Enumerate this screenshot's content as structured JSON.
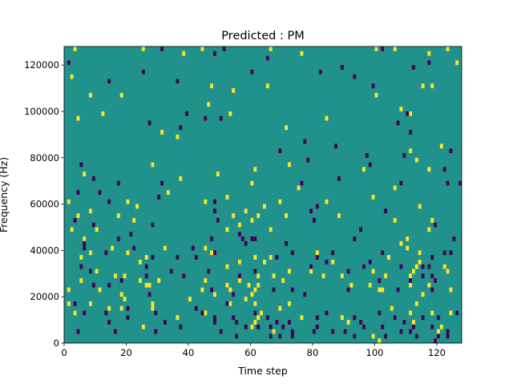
{
  "chart_data": {
    "type": "heatmap",
    "title": "Predicted : PM",
    "xlabel": "Time step",
    "ylabel": "Frequency (Hz)",
    "xlim": [
      0,
      128
    ],
    "ylim": [
      0,
      128000
    ],
    "x_ticks": [
      0,
      20,
      40,
      60,
      80,
      100,
      120
    ],
    "y_ticks": [
      0,
      20000,
      40000,
      60000,
      80000,
      100000,
      120000
    ],
    "n_time_steps": 128,
    "n_freq_bins": 64,
    "freq_bin_width_hz": 2000,
    "grid": false,
    "legend": "none",
    "colors": {
      "background": "#21918c",
      "high": "#fde725",
      "low": "#440154"
    },
    "cells": {
      "high": [
        [
          3,
          63
        ],
        [
          2,
          57
        ],
        [
          25,
          63
        ],
        [
          38,
          62
        ],
        [
          44,
          63
        ],
        [
          66,
          63
        ],
        [
          76,
          62
        ],
        [
          100,
          63
        ],
        [
          106,
          63
        ],
        [
          117,
          62
        ],
        [
          123,
          63
        ],
        [
          8,
          53
        ],
        [
          18,
          53
        ],
        [
          47,
          55
        ],
        [
          54,
          54
        ],
        [
          65,
          55
        ],
        [
          100,
          53
        ],
        [
          115,
          55
        ],
        [
          118,
          55
        ],
        [
          126,
          60
        ],
        [
          4,
          48
        ],
        [
          12,
          49
        ],
        [
          31,
          45
        ],
        [
          36,
          44
        ],
        [
          53,
          49
        ],
        [
          46,
          51
        ],
        [
          71,
          46
        ],
        [
          84,
          48
        ],
        [
          111,
          49
        ],
        [
          108,
          50
        ],
        [
          6,
          36
        ],
        [
          28,
          38
        ],
        [
          60,
          34
        ],
        [
          61,
          37
        ],
        [
          72,
          38
        ],
        [
          96,
          37
        ],
        [
          111,
          41
        ],
        [
          121,
          42
        ],
        [
          113,
          39
        ],
        [
          117,
          37
        ],
        [
          1,
          30
        ],
        [
          4,
          27
        ],
        [
          8,
          28
        ],
        [
          20,
          30
        ],
        [
          23,
          29
        ],
        [
          37,
          35
        ],
        [
          45,
          30
        ],
        [
          49,
          36
        ],
        [
          52,
          31
        ],
        [
          64,
          29
        ],
        [
          69,
          30
        ],
        [
          75,
          33
        ],
        [
          84,
          30
        ],
        [
          99,
          31
        ],
        [
          114,
          29
        ],
        [
          106,
          33
        ],
        [
          2,
          24
        ],
        [
          6,
          22
        ],
        [
          10,
          24
        ],
        [
          17,
          27
        ],
        [
          22,
          26
        ],
        [
          33,
          32
        ],
        [
          52,
          24
        ],
        [
          54,
          27
        ],
        [
          56,
          25
        ],
        [
          58,
          28
        ],
        [
          60,
          26
        ],
        [
          62,
          27
        ],
        [
          66,
          24
        ],
        [
          71,
          27
        ],
        [
          88,
          27
        ],
        [
          106,
          26
        ],
        [
          110,
          22
        ],
        [
          117,
          24
        ],
        [
          118,
          26
        ],
        [
          5,
          18
        ],
        [
          8,
          19
        ],
        [
          15,
          20
        ],
        [
          20,
          19
        ],
        [
          24,
          17
        ],
        [
          26,
          18
        ],
        [
          32,
          20
        ],
        [
          45,
          20
        ],
        [
          47,
          19
        ],
        [
          52,
          16
        ],
        [
          56,
          17
        ],
        [
          61,
          18
        ],
        [
          64,
          17
        ],
        [
          66,
          18
        ],
        [
          72,
          15
        ],
        [
          81,
          19
        ],
        [
          86,
          17
        ],
        [
          104,
          18
        ],
        [
          108,
          21
        ],
        [
          110,
          20
        ],
        [
          114,
          19
        ],
        [
          122,
          16
        ],
        [
          5,
          13
        ],
        [
          10,
          15
        ],
        [
          16,
          14
        ],
        [
          19,
          14
        ],
        [
          24,
          13
        ],
        [
          27,
          12
        ],
        [
          30,
          13
        ],
        [
          45,
          13
        ],
        [
          52,
          12
        ],
        [
          56,
          13
        ],
        [
          62,
          14
        ],
        [
          67,
          14
        ],
        [
          70,
          13
        ],
        [
          79,
          15
        ],
        [
          89,
          14
        ],
        [
          92,
          12
        ],
        [
          99,
          15
        ],
        [
          101,
          11
        ],
        [
          103,
          14
        ],
        [
          111,
          14
        ],
        [
          112,
          15
        ],
        [
          113,
          16
        ],
        [
          114,
          17
        ],
        [
          117,
          12
        ],
        [
          123,
          15
        ],
        [
          1,
          11
        ],
        [
          11,
          11
        ],
        [
          18,
          10
        ],
        [
          26,
          12
        ],
        [
          44,
          11
        ],
        [
          48,
          10
        ],
        [
          53,
          11
        ],
        [
          59,
          12
        ],
        [
          60,
          10
        ],
        [
          61,
          11
        ],
        [
          62,
          12
        ],
        [
          83,
          14
        ],
        [
          98,
          12
        ],
        [
          102,
          11
        ],
        [
          111,
          12
        ],
        [
          115,
          10
        ],
        [
          124,
          11
        ],
        [
          3,
          6
        ],
        [
          14,
          7
        ],
        [
          18,
          7
        ],
        [
          28,
          7
        ],
        [
          36,
          5
        ],
        [
          45,
          6
        ],
        [
          60,
          3
        ],
        [
          61,
          4
        ],
        [
          62,
          5
        ],
        [
          63,
          6
        ],
        [
          69,
          7
        ],
        [
          89,
          5
        ],
        [
          105,
          7
        ],
        [
          111,
          6
        ],
        [
          113,
          8
        ],
        [
          118,
          6
        ],
        [
          121,
          3
        ],
        [
          1,
          8
        ],
        [
          8,
          8
        ],
        [
          19,
          9
        ],
        [
          25,
          3
        ],
        [
          28,
          8
        ],
        [
          40,
          9
        ],
        [
          53,
          8
        ],
        [
          58,
          9
        ],
        [
          61,
          8
        ],
        [
          67,
          2
        ],
        [
          72,
          8
        ],
        [
          76,
          5
        ],
        [
          91,
          4
        ],
        [
          99,
          1
        ],
        [
          101,
          0
        ],
        [
          112,
          4
        ],
        [
          120,
          2
        ],
        [
          124,
          6
        ]
      ],
      "low": [
        [
          31,
          63
        ],
        [
          48,
          62
        ],
        [
          51,
          63
        ],
        [
          102,
          63
        ],
        [
          117,
          60
        ],
        [
          1,
          60
        ],
        [
          25,
          58
        ],
        [
          60,
          58
        ],
        [
          65,
          61
        ],
        [
          82,
          58
        ],
        [
          89,
          59
        ],
        [
          112,
          59
        ],
        [
          99,
          55
        ],
        [
          14,
          56
        ],
        [
          36,
          56
        ],
        [
          93,
          57
        ],
        [
          39,
          49
        ],
        [
          45,
          48
        ],
        [
          27,
          47
        ],
        [
          50,
          48
        ],
        [
          37,
          46
        ],
        [
          107,
          47
        ],
        [
          111,
          45
        ],
        [
          110,
          49
        ],
        [
          77,
          43
        ],
        [
          78,
          39
        ],
        [
          5,
          38
        ],
        [
          17,
          34
        ],
        [
          31,
          34
        ],
        [
          9,
          35
        ],
        [
          69,
          41
        ],
        [
          87,
          42
        ],
        [
          98,
          38
        ],
        [
          123,
          34
        ],
        [
          124,
          41
        ],
        [
          109,
          40
        ],
        [
          4,
          32
        ],
        [
          14,
          30
        ],
        [
          11,
          32
        ],
        [
          30,
          31
        ],
        [
          48,
          30
        ],
        [
          79,
          28
        ],
        [
          76,
          34
        ],
        [
          88,
          35
        ],
        [
          97,
          40
        ],
        [
          122,
          37
        ],
        [
          127,
          34
        ],
        [
          103,
          28
        ],
        [
          108,
          34
        ],
        [
          3,
          26
        ],
        [
          6,
          21
        ],
        [
          9,
          25
        ],
        [
          17,
          22
        ],
        [
          21,
          23
        ],
        [
          28,
          25
        ],
        [
          41,
          20
        ],
        [
          47,
          22
        ],
        [
          48,
          28
        ],
        [
          49,
          26
        ],
        [
          56,
          23
        ],
        [
          58,
          21
        ],
        [
          60,
          22
        ],
        [
          61,
          22
        ],
        [
          73,
          19
        ],
        [
          80,
          26
        ],
        [
          81,
          29
        ],
        [
          93,
          22
        ],
        [
          95,
          24
        ],
        [
          119,
          25
        ],
        [
          125,
          22
        ],
        [
          6,
          20
        ],
        [
          13,
          19
        ],
        [
          22,
          20
        ],
        [
          28,
          18
        ],
        [
          36,
          18
        ],
        [
          42,
          18
        ],
        [
          48,
          19
        ],
        [
          57,
          22
        ],
        [
          68,
          18
        ],
        [
          71,
          21
        ],
        [
          81,
          18
        ],
        [
          84,
          17
        ],
        [
          86,
          19
        ],
        [
          96,
          16
        ],
        [
          102,
          19
        ],
        [
          108,
          16
        ],
        [
          115,
          16
        ],
        [
          118,
          18
        ],
        [
          122,
          19
        ],
        [
          124,
          19
        ],
        [
          5,
          16
        ],
        [
          8,
          15
        ],
        [
          26,
          16
        ],
        [
          38,
          14
        ],
        [
          46,
          15
        ],
        [
          56,
          14
        ],
        [
          61,
          15
        ],
        [
          79,
          16
        ],
        [
          91,
          15
        ],
        [
          98,
          17
        ],
        [
          115,
          14
        ],
        [
          117,
          16
        ],
        [
          118,
          14
        ],
        [
          9,
          12
        ],
        [
          14,
          12
        ],
        [
          18,
          13
        ],
        [
          26,
          14
        ],
        [
          34,
          15
        ],
        [
          47,
          11
        ],
        [
          54,
          10
        ],
        [
          67,
          11
        ],
        [
          73,
          11
        ],
        [
          77,
          10
        ],
        [
          91,
          11
        ],
        [
          101,
          13
        ],
        [
          107,
          11
        ],
        [
          111,
          13
        ],
        [
          118,
          11
        ],
        [
          119,
          13
        ],
        [
          3,
          8
        ],
        [
          6,
          6
        ],
        [
          14,
          4
        ],
        [
          20,
          5
        ],
        [
          29,
          6
        ],
        [
          32,
          4
        ],
        [
          37,
          3
        ],
        [
          44,
          6
        ],
        [
          48,
          5
        ],
        [
          52,
          8
        ],
        [
          55,
          4
        ],
        [
          61,
          6
        ],
        [
          65,
          5
        ],
        [
          68,
          4
        ],
        [
          70,
          3
        ],
        [
          72,
          4
        ],
        [
          81,
          5
        ],
        [
          84,
          6
        ],
        [
          93,
          5
        ],
        [
          95,
          4
        ],
        [
          101,
          6
        ],
        [
          106,
          5
        ],
        [
          109,
          4
        ],
        [
          112,
          3
        ],
        [
          115,
          5
        ],
        [
          118,
          3
        ],
        [
          120,
          5
        ],
        [
          126,
          6
        ],
        [
          13,
          6
        ],
        [
          20,
          7
        ],
        [
          27,
          10
        ],
        [
          42,
          7
        ],
        [
          48,
          4
        ],
        [
          54,
          5
        ],
        [
          58,
          3
        ],
        [
          62,
          3
        ],
        [
          66,
          3
        ],
        [
          69,
          1
        ],
        [
          73,
          1
        ],
        [
          80,
          2
        ],
        [
          86,
          2
        ],
        [
          93,
          1
        ],
        [
          96,
          3
        ],
        [
          102,
          3
        ],
        [
          108,
          2
        ],
        [
          113,
          1
        ],
        [
          120,
          1
        ],
        [
          123,
          2
        ],
        [
          4,
          2
        ],
        [
          16,
          2
        ],
        [
          29,
          2
        ],
        [
          50,
          2
        ],
        [
          55,
          1
        ],
        [
          66,
          1
        ],
        [
          73,
          2
        ],
        [
          81,
          3
        ],
        [
          90,
          2
        ],
        [
          103,
          1
        ],
        [
          111,
          2
        ],
        [
          119,
          0
        ],
        [
          123,
          1
        ]
      ]
    }
  }
}
